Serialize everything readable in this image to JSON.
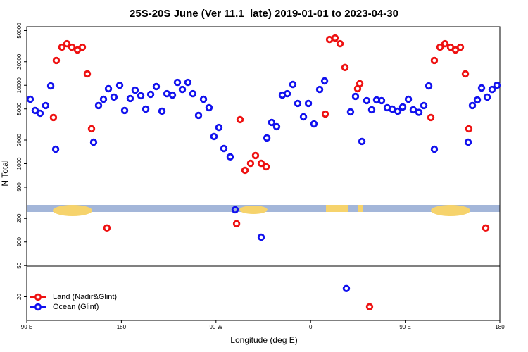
{
  "chart_data": {
    "type": "scatter",
    "title": "25S-20S June (Ver 11.1_late)   2019-01-01 to 2023-04-30",
    "x_label": "Longitude (deg E)",
    "y_label": "N Total",
    "ylog": true,
    "legend": "lower left",
    "xlim": [
      90,
      540
    ],
    "ylim": [
      10,
      56000
    ],
    "xticks": [
      {
        "value": 90,
        "label": "90 E"
      },
      180,
      {
        "value": 270,
        "label": "90 W"
      },
      {
        "value": 360,
        "label": "0"
      },
      {
        "value": 450,
        "label": "90 E"
      },
      {
        "value": 540,
        "label": "180"
      }
    ],
    "yticks": [
      20,
      50,
      100,
      200,
      500,
      1000,
      2000,
      5000,
      10000,
      20000,
      50000
    ],
    "series": [
      {
        "name": "Land (Nadir&Glint)",
        "color": "#ee1111",
        "x": [
          115.4,
          118.1,
          123.4,
          128.2,
          132.9,
          138.2,
          142.9,
          147.6,
          151.6,
          166.3,
          289.6,
          292.9,
          297.6,
          302.9,
          307.6,
          313,
          317.7,
          374,
          378,
          383.3,
          388,
          392.7,
          404.7,
          406.8,
          416.1,
          474.4,
          477.7,
          483.1,
          487.8,
          493.1,
          497.8,
          502.5,
          507.2,
          510.5,
          526.6
        ],
        "values": [
          3880,
          20750,
          30700,
          34000,
          30700,
          28300,
          30700,
          14000,
          2790,
          151,
          171,
          3650,
          822,
          1010,
          1270,
          1010,
          912,
          4300,
          38500,
          40200,
          34000,
          16900,
          9060,
          10500,
          14.9,
          3880,
          20750,
          30700,
          34000,
          30700,
          28300,
          30700,
          14000,
          2790,
          151
        ]
      },
      {
        "name": "Ocean (Glint)",
        "color": "#1111ee",
        "x": [
          93.3,
          98,
          102.7,
          108,
          112.8,
          117.5,
          153.6,
          158.3,
          163,
          167.7,
          173,
          178.4,
          183.1,
          188.4,
          193.1,
          198.5,
          203.2,
          207.9,
          213.2,
          218.6,
          223.3,
          228.6,
          233.3,
          238,
          243.3,
          248,
          253.4,
          258.1,
          263.4,
          268.1,
          272.8,
          277.5,
          283.5,
          288.2,
          313,
          318.4,
          323,
          327.7,
          333.1,
          337.8,
          343.1,
          347.8,
          353.2,
          357.9,
          363.2,
          368.6,
          373.3,
          394,
          398,
          402.7,
          408.8,
          413.4,
          418.1,
          422.8,
          427.5,
          432.9,
          437.6,
          442.9,
          447.6,
          453,
          457.6,
          463,
          467.7,
          472.4,
          477.7,
          509.9,
          513.9,
          518.6,
          522.6,
          528,
          532.6,
          537.3
        ],
        "values": [
          6650,
          4780,
          4400,
          5520,
          9840,
          1530,
          1880,
          5520,
          6650,
          9060,
          7080,
          10000,
          4780,
          6790,
          8690,
          7380,
          4980,
          7680,
          9640,
          4680,
          7830,
          7510,
          10900,
          8870,
          10900,
          7830,
          4130,
          6650,
          5190,
          2220,
          2900,
          1560,
          1220,
          258,
          115,
          2130,
          3360,
          2970,
          7510,
          7830,
          10260,
          5880,
          3960,
          5880,
          3220,
          8870,
          11380,
          25.5,
          4580,
          7220,
          1920,
          6380,
          4880,
          6520,
          6380,
          5190,
          4980,
          4680,
          5300,
          6650,
          4880,
          4520,
          5520,
          9840,
          1530,
          1880,
          5520,
          6520,
          9250,
          7080,
          8870,
          10000
        ]
      }
    ]
  }
}
